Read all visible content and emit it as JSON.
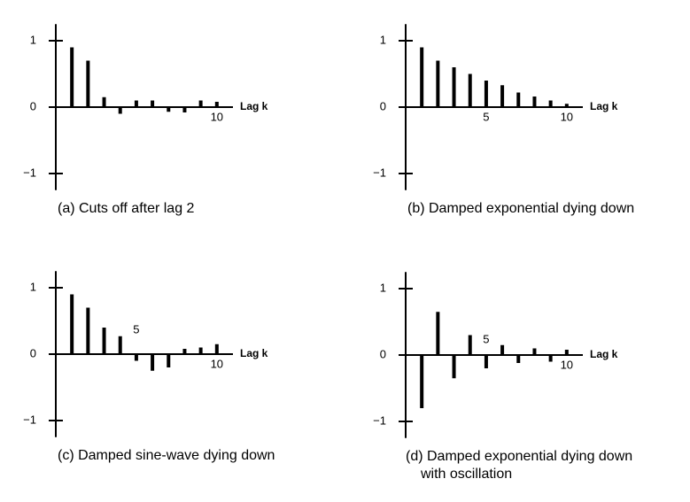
{
  "chart_data": [
    {
      "type": "bar",
      "title": "(a) Cuts off after lag 2",
      "x_label": "Lag k",
      "x": [
        1,
        2,
        3,
        4,
        5,
        6,
        7,
        8,
        9,
        10
      ],
      "values": [
        0.9,
        0.7,
        0.15,
        -0.1,
        0.1,
        0.1,
        -0.07,
        -0.08,
        0.1,
        0.08
      ],
      "color": "#000000",
      "xlim": [
        0,
        11
      ],
      "xticks": [
        10
      ],
      "ylim": [
        -1.25,
        1.25
      ],
      "yticks": [
        1,
        0,
        {
          "value": -1,
          "label": "−1"
        }
      ]
    },
    {
      "type": "bar",
      "title": "(b) Damped exponential dying down",
      "x_label": "Lag k",
      "x": [
        1,
        2,
        3,
        4,
        5,
        6,
        7,
        8,
        9,
        10
      ],
      "values": [
        0.9,
        0.7,
        0.6,
        0.5,
        0.4,
        0.33,
        0.22,
        0.16,
        0.1,
        0.05
      ],
      "color": "#000000",
      "xlim": [
        0,
        11
      ],
      "xticks": [
        5,
        10
      ],
      "ylim": [
        -1.25,
        1.25
      ],
      "yticks": [
        1,
        0,
        {
          "value": -1,
          "label": "−1"
        }
      ]
    },
    {
      "type": "bar",
      "title": "(c) Damped sine-wave dying down",
      "x_label": "Lag k",
      "x": [
        1,
        2,
        3,
        4,
        5,
        6,
        7,
        8,
        9,
        10
      ],
      "values": [
        0.9,
        0.7,
        0.4,
        0.27,
        -0.1,
        -0.25,
        -0.2,
        0.08,
        0.1,
        0.15
      ],
      "color": "#000000",
      "xlim": [
        0,
        11
      ],
      "xticks": [
        5,
        10
      ],
      "ylim": [
        -1.25,
        1.25
      ],
      "yticks": [
        1,
        0,
        {
          "value": -1,
          "label": "−1"
        }
      ]
    },
    {
      "type": "bar",
      "title": [
        "(d) Damped exponential dying down",
        "with oscillation"
      ],
      "x_label": "Lag k",
      "x": [
        1,
        2,
        3,
        4,
        5,
        6,
        7,
        8,
        9,
        10
      ],
      "values": [
        -0.8,
        0.65,
        -0.35,
        0.3,
        -0.2,
        0.15,
        -0.12,
        0.1,
        -0.1,
        0.08
      ],
      "color": "#000000",
      "xlim": [
        0,
        11
      ],
      "xticks": [
        5,
        10
      ],
      "ylim": [
        -1.25,
        1.25
      ],
      "yticks": [
        1,
        0,
        {
          "value": -1,
          "label": "−1"
        }
      ]
    }
  ]
}
